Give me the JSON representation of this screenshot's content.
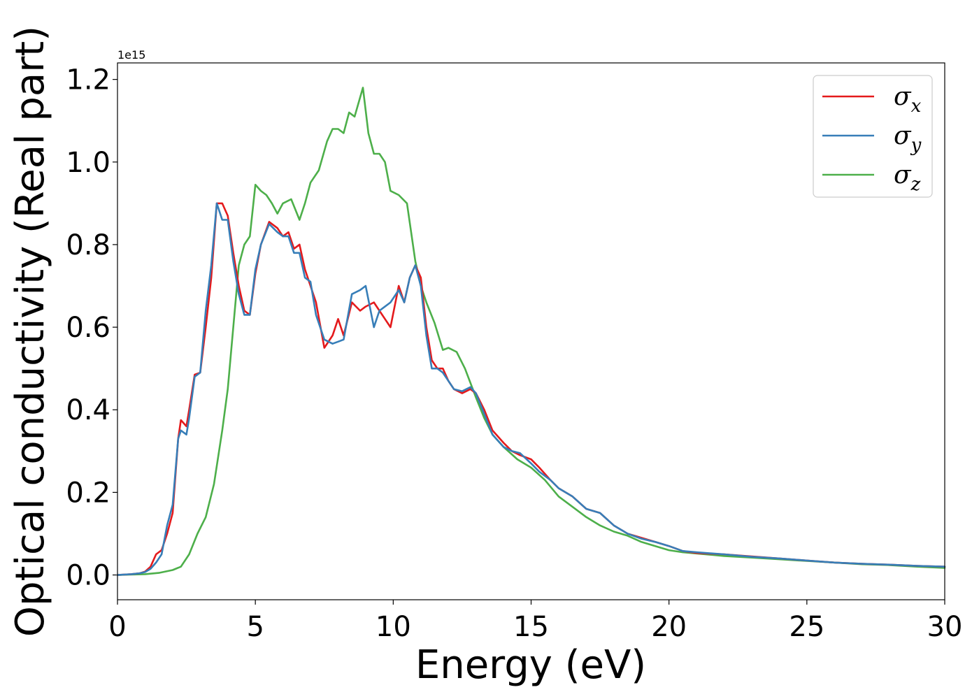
{
  "chart_data": {
    "type": "line",
    "xlabel": "Energy (eV)",
    "ylabel": "Optical conductivity (Real part)",
    "y_offset_label": "1e15",
    "xlim": [
      0,
      30
    ],
    "ylim": [
      -0.06,
      1.24
    ],
    "xticks": [
      0,
      5,
      10,
      15,
      20,
      25,
      30
    ],
    "yticks": [
      0.0,
      0.2,
      0.4,
      0.6,
      0.8,
      1.0,
      1.2
    ],
    "xtick_labels": [
      "0",
      "5",
      "10",
      "15",
      "20",
      "25",
      "30"
    ],
    "ytick_labels": [
      "0.0",
      "0.2",
      "0.4",
      "0.6",
      "0.8",
      "1.0",
      "1.2"
    ],
    "grid": false,
    "legend_position": "top-right",
    "series": [
      {
        "name": "σx",
        "label_base": "σ",
        "label_sub": "x",
        "color": "#e41a1c",
        "x": [
          0,
          0.5,
          0.8,
          1.0,
          1.2,
          1.4,
          1.6,
          1.8,
          2.0,
          2.2,
          2.3,
          2.5,
          2.6,
          2.8,
          3.0,
          3.2,
          3.4,
          3.6,
          3.8,
          4.0,
          4.2,
          4.4,
          4.6,
          4.8,
          5.0,
          5.2,
          5.5,
          5.8,
          6.0,
          6.2,
          6.4,
          6.6,
          6.8,
          7.0,
          7.2,
          7.5,
          7.8,
          8.0,
          8.2,
          8.5,
          8.8,
          9.0,
          9.3,
          9.5,
          9.7,
          9.9,
          10.2,
          10.4,
          10.6,
          10.8,
          11.0,
          11.2,
          11.4,
          11.6,
          11.8,
          12.0,
          12.2,
          12.5,
          12.8,
          13.0,
          13.3,
          13.6,
          14.0,
          14.3,
          14.6,
          15.0,
          15.3,
          15.7,
          16.0,
          16.5,
          17.0,
          17.5,
          18.0,
          18.5,
          19.0,
          19.5,
          20.0,
          20.5,
          21.0,
          22.0,
          23.0,
          24.0,
          25.0,
          26.0,
          27.0,
          28.0,
          29.0,
          30.0
        ],
        "values": [
          0.0,
          0.002,
          0.004,
          0.008,
          0.02,
          0.05,
          0.06,
          0.1,
          0.15,
          0.33,
          0.375,
          0.36,
          0.4,
          0.485,
          0.49,
          0.6,
          0.72,
          0.9,
          0.9,
          0.87,
          0.78,
          0.7,
          0.64,
          0.63,
          0.73,
          0.8,
          0.855,
          0.84,
          0.82,
          0.83,
          0.79,
          0.8,
          0.74,
          0.7,
          0.66,
          0.55,
          0.58,
          0.62,
          0.58,
          0.66,
          0.64,
          0.65,
          0.66,
          0.64,
          0.62,
          0.6,
          0.7,
          0.66,
          0.72,
          0.75,
          0.72,
          0.6,
          0.52,
          0.5,
          0.5,
          0.47,
          0.45,
          0.44,
          0.45,
          0.44,
          0.4,
          0.35,
          0.32,
          0.3,
          0.29,
          0.28,
          0.26,
          0.23,
          0.21,
          0.19,
          0.16,
          0.15,
          0.12,
          0.1,
          0.09,
          0.08,
          0.07,
          0.058,
          0.053,
          0.05,
          0.045,
          0.04,
          0.035,
          0.03,
          0.027,
          0.025,
          0.022,
          0.02
        ]
      },
      {
        "name": "σy",
        "label_base": "σ",
        "label_sub": "y",
        "color": "#377eb8",
        "x": [
          0,
          0.5,
          0.8,
          1.0,
          1.2,
          1.4,
          1.6,
          1.8,
          2.0,
          2.2,
          2.3,
          2.5,
          2.6,
          2.8,
          3.0,
          3.2,
          3.4,
          3.6,
          3.8,
          4.0,
          4.2,
          4.4,
          4.6,
          4.8,
          5.0,
          5.2,
          5.5,
          5.8,
          6.0,
          6.2,
          6.4,
          6.6,
          6.8,
          7.0,
          7.2,
          7.5,
          7.8,
          8.0,
          8.2,
          8.5,
          8.8,
          9.0,
          9.3,
          9.5,
          9.7,
          9.9,
          10.2,
          10.4,
          10.6,
          10.8,
          11.0,
          11.2,
          11.4,
          11.6,
          11.8,
          12.0,
          12.2,
          12.5,
          12.8,
          13.0,
          13.3,
          13.6,
          14.0,
          14.3,
          14.6,
          15.0,
          15.3,
          15.7,
          16.0,
          16.5,
          17.0,
          17.5,
          18.0,
          18.5,
          19.0,
          19.5,
          20.0,
          20.5,
          21.0,
          22.0,
          23.0,
          24.0,
          25.0,
          26.0,
          27.0,
          28.0,
          29.0,
          30.0
        ],
        "values": [
          0.0,
          0.002,
          0.004,
          0.007,
          0.015,
          0.03,
          0.05,
          0.12,
          0.17,
          0.33,
          0.35,
          0.34,
          0.38,
          0.48,
          0.49,
          0.64,
          0.75,
          0.9,
          0.86,
          0.86,
          0.76,
          0.68,
          0.63,
          0.63,
          0.74,
          0.8,
          0.85,
          0.83,
          0.82,
          0.82,
          0.78,
          0.78,
          0.72,
          0.71,
          0.63,
          0.57,
          0.56,
          0.565,
          0.57,
          0.68,
          0.69,
          0.7,
          0.6,
          0.64,
          0.65,
          0.66,
          0.69,
          0.66,
          0.72,
          0.75,
          0.7,
          0.58,
          0.5,
          0.5,
          0.49,
          0.47,
          0.45,
          0.445,
          0.455,
          0.44,
          0.39,
          0.34,
          0.31,
          0.3,
          0.295,
          0.27,
          0.25,
          0.23,
          0.21,
          0.19,
          0.16,
          0.15,
          0.12,
          0.1,
          0.088,
          0.08,
          0.07,
          0.058,
          0.055,
          0.05,
          0.044,
          0.04,
          0.035,
          0.03,
          0.027,
          0.025,
          0.022,
          0.02
        ]
      },
      {
        "name": "σz",
        "label_base": "σ",
        "label_sub": "z",
        "color": "#4daf4a",
        "x": [
          0,
          0.5,
          1.0,
          1.5,
          2.0,
          2.3,
          2.6,
          2.9,
          3.2,
          3.5,
          3.8,
          4.0,
          4.2,
          4.4,
          4.6,
          4.8,
          5.0,
          5.2,
          5.4,
          5.6,
          5.8,
          6.0,
          6.3,
          6.6,
          6.8,
          7.0,
          7.3,
          7.6,
          7.8,
          8.0,
          8.2,
          8.4,
          8.6,
          8.9,
          9.1,
          9.3,
          9.5,
          9.7,
          9.9,
          10.2,
          10.5,
          10.8,
          11.0,
          11.2,
          11.5,
          11.8,
          12.0,
          12.3,
          12.6,
          13.0,
          13.3,
          13.6,
          14.0,
          14.5,
          15.0,
          15.5,
          16.0,
          16.5,
          17.0,
          17.5,
          18.0,
          18.5,
          19.0,
          19.5,
          20.0,
          20.5,
          21.0,
          22.0,
          23.0,
          24.0,
          25.0,
          26.0,
          27.0,
          28.0,
          29.0,
          30.0
        ],
        "values": [
          0.0,
          0.001,
          0.002,
          0.005,
          0.012,
          0.02,
          0.05,
          0.1,
          0.14,
          0.22,
          0.35,
          0.45,
          0.6,
          0.75,
          0.8,
          0.82,
          0.945,
          0.93,
          0.92,
          0.9,
          0.875,
          0.9,
          0.91,
          0.86,
          0.9,
          0.95,
          0.98,
          1.05,
          1.08,
          1.08,
          1.07,
          1.12,
          1.11,
          1.18,
          1.07,
          1.02,
          1.02,
          1.0,
          0.93,
          0.92,
          0.9,
          0.76,
          0.7,
          0.66,
          0.61,
          0.545,
          0.55,
          0.54,
          0.5,
          0.43,
          0.38,
          0.34,
          0.31,
          0.28,
          0.26,
          0.23,
          0.19,
          0.165,
          0.14,
          0.12,
          0.105,
          0.095,
          0.08,
          0.07,
          0.06,
          0.055,
          0.052,
          0.046,
          0.042,
          0.038,
          0.034,
          0.03,
          0.026,
          0.024,
          0.02,
          0.017
        ]
      }
    ]
  }
}
